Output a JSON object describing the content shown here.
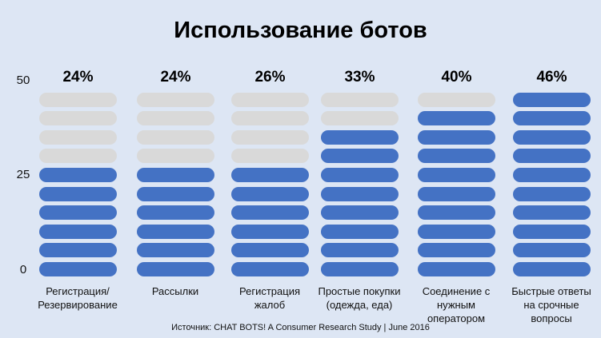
{
  "chart_data": {
    "type": "bar",
    "title": "Использование ботов",
    "categories": [
      "Регистрация/\nРезервирование",
      "Рассылки",
      "Регистрация\nжалоб",
      "Простые покупки\n(одежда, еда)",
      "Соединение с\nнужным\nоператором",
      "Быстрые ответы\nна срочные\nвопросы"
    ],
    "values": [
      24,
      24,
      26,
      33,
      40,
      46
    ],
    "value_labels": [
      "24%",
      "24%",
      "26%",
      "33%",
      "40%",
      "46%"
    ],
    "segments_total": 10,
    "filled_segments": [
      6,
      6,
      6,
      8,
      9,
      10
    ],
    "y_ticks": [
      "0",
      "25",
      "50"
    ],
    "ylim": [
      0,
      50
    ],
    "colors": {
      "filled": "#4472c4",
      "empty": "#d9d9d9",
      "background": "#dde6f4"
    },
    "source": "Источник: CHAT BOTS! A Consumer Research Study | June 2016"
  }
}
